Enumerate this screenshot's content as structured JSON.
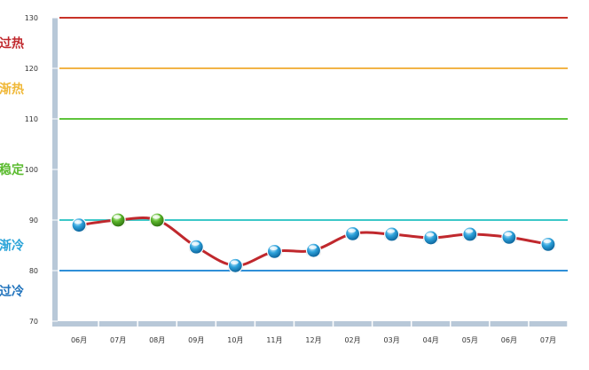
{
  "chart_data": {
    "type": "line",
    "categories": [
      "06月",
      "07月",
      "08月",
      "09月",
      "10月",
      "11月",
      "12月",
      "02月",
      "03月",
      "04月",
      "05月",
      "06月",
      "07月"
    ],
    "series": [
      {
        "values": [
          89,
          90,
          90,
          84.7,
          81,
          83.8,
          84,
          87.3,
          87.2,
          86.5,
          87.2,
          86.6,
          85.2
        ]
      }
    ],
    "marker_status": [
      "normal",
      "highlight",
      "highlight",
      "normal",
      "normal",
      "normal",
      "normal",
      "normal",
      "normal",
      "normal",
      "normal",
      "normal",
      "normal"
    ],
    "ylim": [
      70,
      130
    ],
    "yticks": [
      70,
      80,
      90,
      100,
      110,
      120,
      130
    ],
    "reference_lines": [
      {
        "value": 130,
        "color": "#c83228"
      },
      {
        "value": 120,
        "color": "#f2b447"
      },
      {
        "value": 110,
        "color": "#5fc43c"
      },
      {
        "value": 90,
        "color": "#3cc8c8"
      },
      {
        "value": 80,
        "color": "#2f8fd8"
      }
    ],
    "zones": [
      {
        "label": "过热",
        "value": 125,
        "color": "#c0282d"
      },
      {
        "label": "渐热",
        "value": 116,
        "color": "#f0b838"
      },
      {
        "label": "稳定",
        "value": 100,
        "color": "#5abb2e"
      },
      {
        "label": "渐冷",
        "value": 85,
        "color": "#29a3d8"
      },
      {
        "label": "过冷",
        "value": 76,
        "color": "#1f72bc"
      }
    ],
    "line_color": "#c0282d",
    "marker_colors": {
      "normal": "#2ea3dc",
      "highlight": "#5ab52a"
    },
    "axis_color": "#b8c8d8",
    "grid": false
  }
}
